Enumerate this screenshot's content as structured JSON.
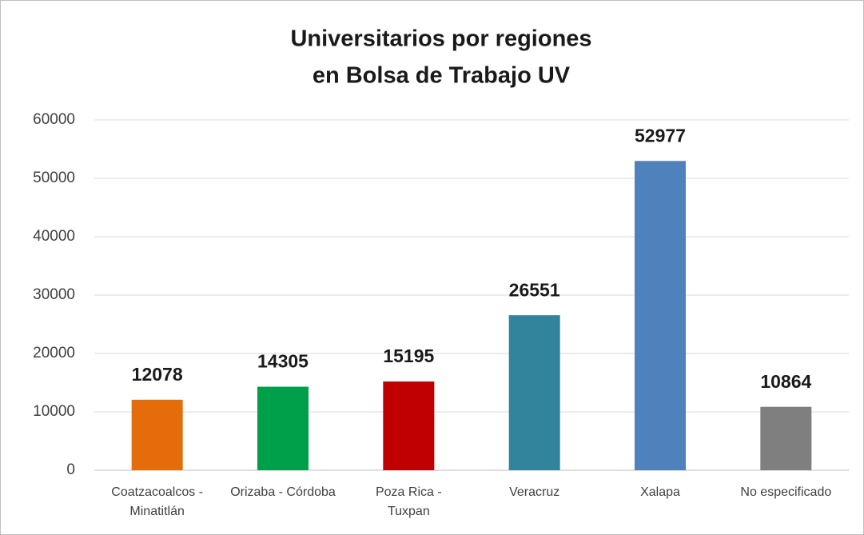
{
  "chart_data": {
    "type": "bar",
    "title": [
      "Universitarios por regiones",
      "en Bolsa de Trabajo UV"
    ],
    "categories": [
      [
        "Coatzacoalcos -",
        "Minatitlán"
      ],
      [
        "Orizaba - Córdoba"
      ],
      [
        "Poza Rica -",
        "Tuxpan"
      ],
      [
        "Veracruz"
      ],
      [
        "Xalapa"
      ],
      [
        "No especificado"
      ]
    ],
    "values": [
      12078,
      14305,
      15195,
      26551,
      52977,
      10864
    ],
    "colors": [
      "#e46c0a",
      "#00a04a",
      "#c00000",
      "#31849b",
      "#4f81bd",
      "#7f7f7f"
    ],
    "ylim": [
      0,
      60000
    ],
    "yticks": [
      0,
      10000,
      20000,
      30000,
      40000,
      50000,
      60000
    ],
    "grid": true
  }
}
